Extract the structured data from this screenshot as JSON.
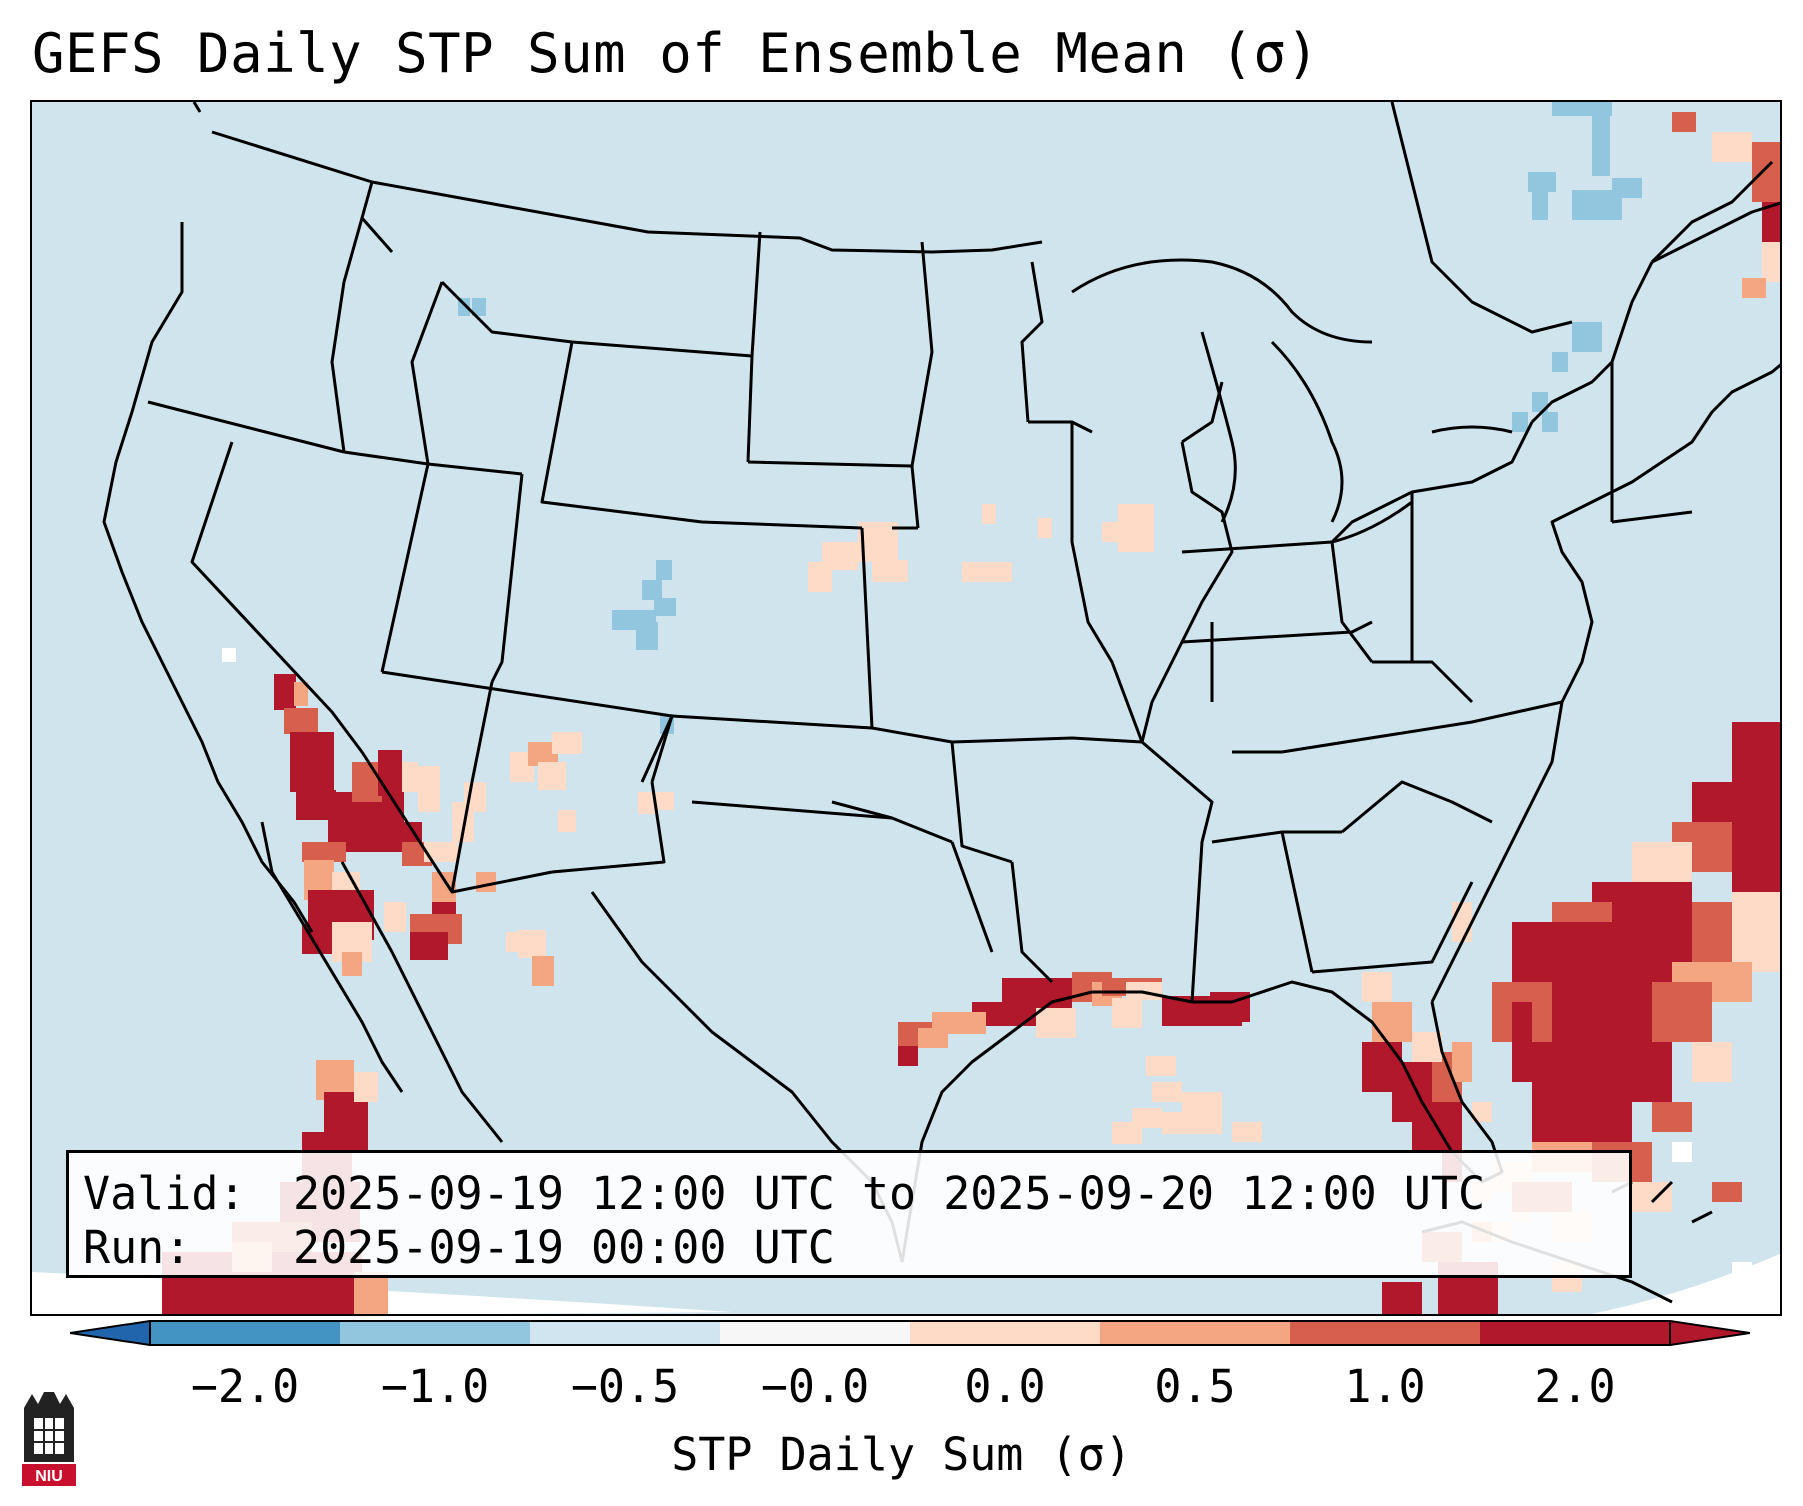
{
  "title": "GEFS Daily STP Sum of Ensemble Mean (σ)",
  "info": {
    "valid_label": "Valid:",
    "valid_value": "2025-09-19 12:00 UTC to 2025-09-20 12:00 UTC",
    "run_label": "Run:",
    "run_value": "2025-09-19 00:00 UTC"
  },
  "colorbar": {
    "label": "STP Daily Sum (σ)",
    "ticks": [
      "−2.0",
      "−1.0",
      "−0.5",
      "−0.0",
      "0.0",
      "0.5",
      "1.0",
      "2.0"
    ],
    "colors": [
      "#4393c3",
      "#92c5de",
      "#d1e5f0",
      "#f7f7f7",
      "#fddbc7",
      "#f4a582",
      "#d6604d",
      "#b2182b"
    ],
    "extend_low_color": "#2166ac",
    "extend_high_color": "#b2182b"
  },
  "logo": {
    "text": "NIU"
  },
  "icons": {
    "logo": "university-seal-icon"
  }
}
